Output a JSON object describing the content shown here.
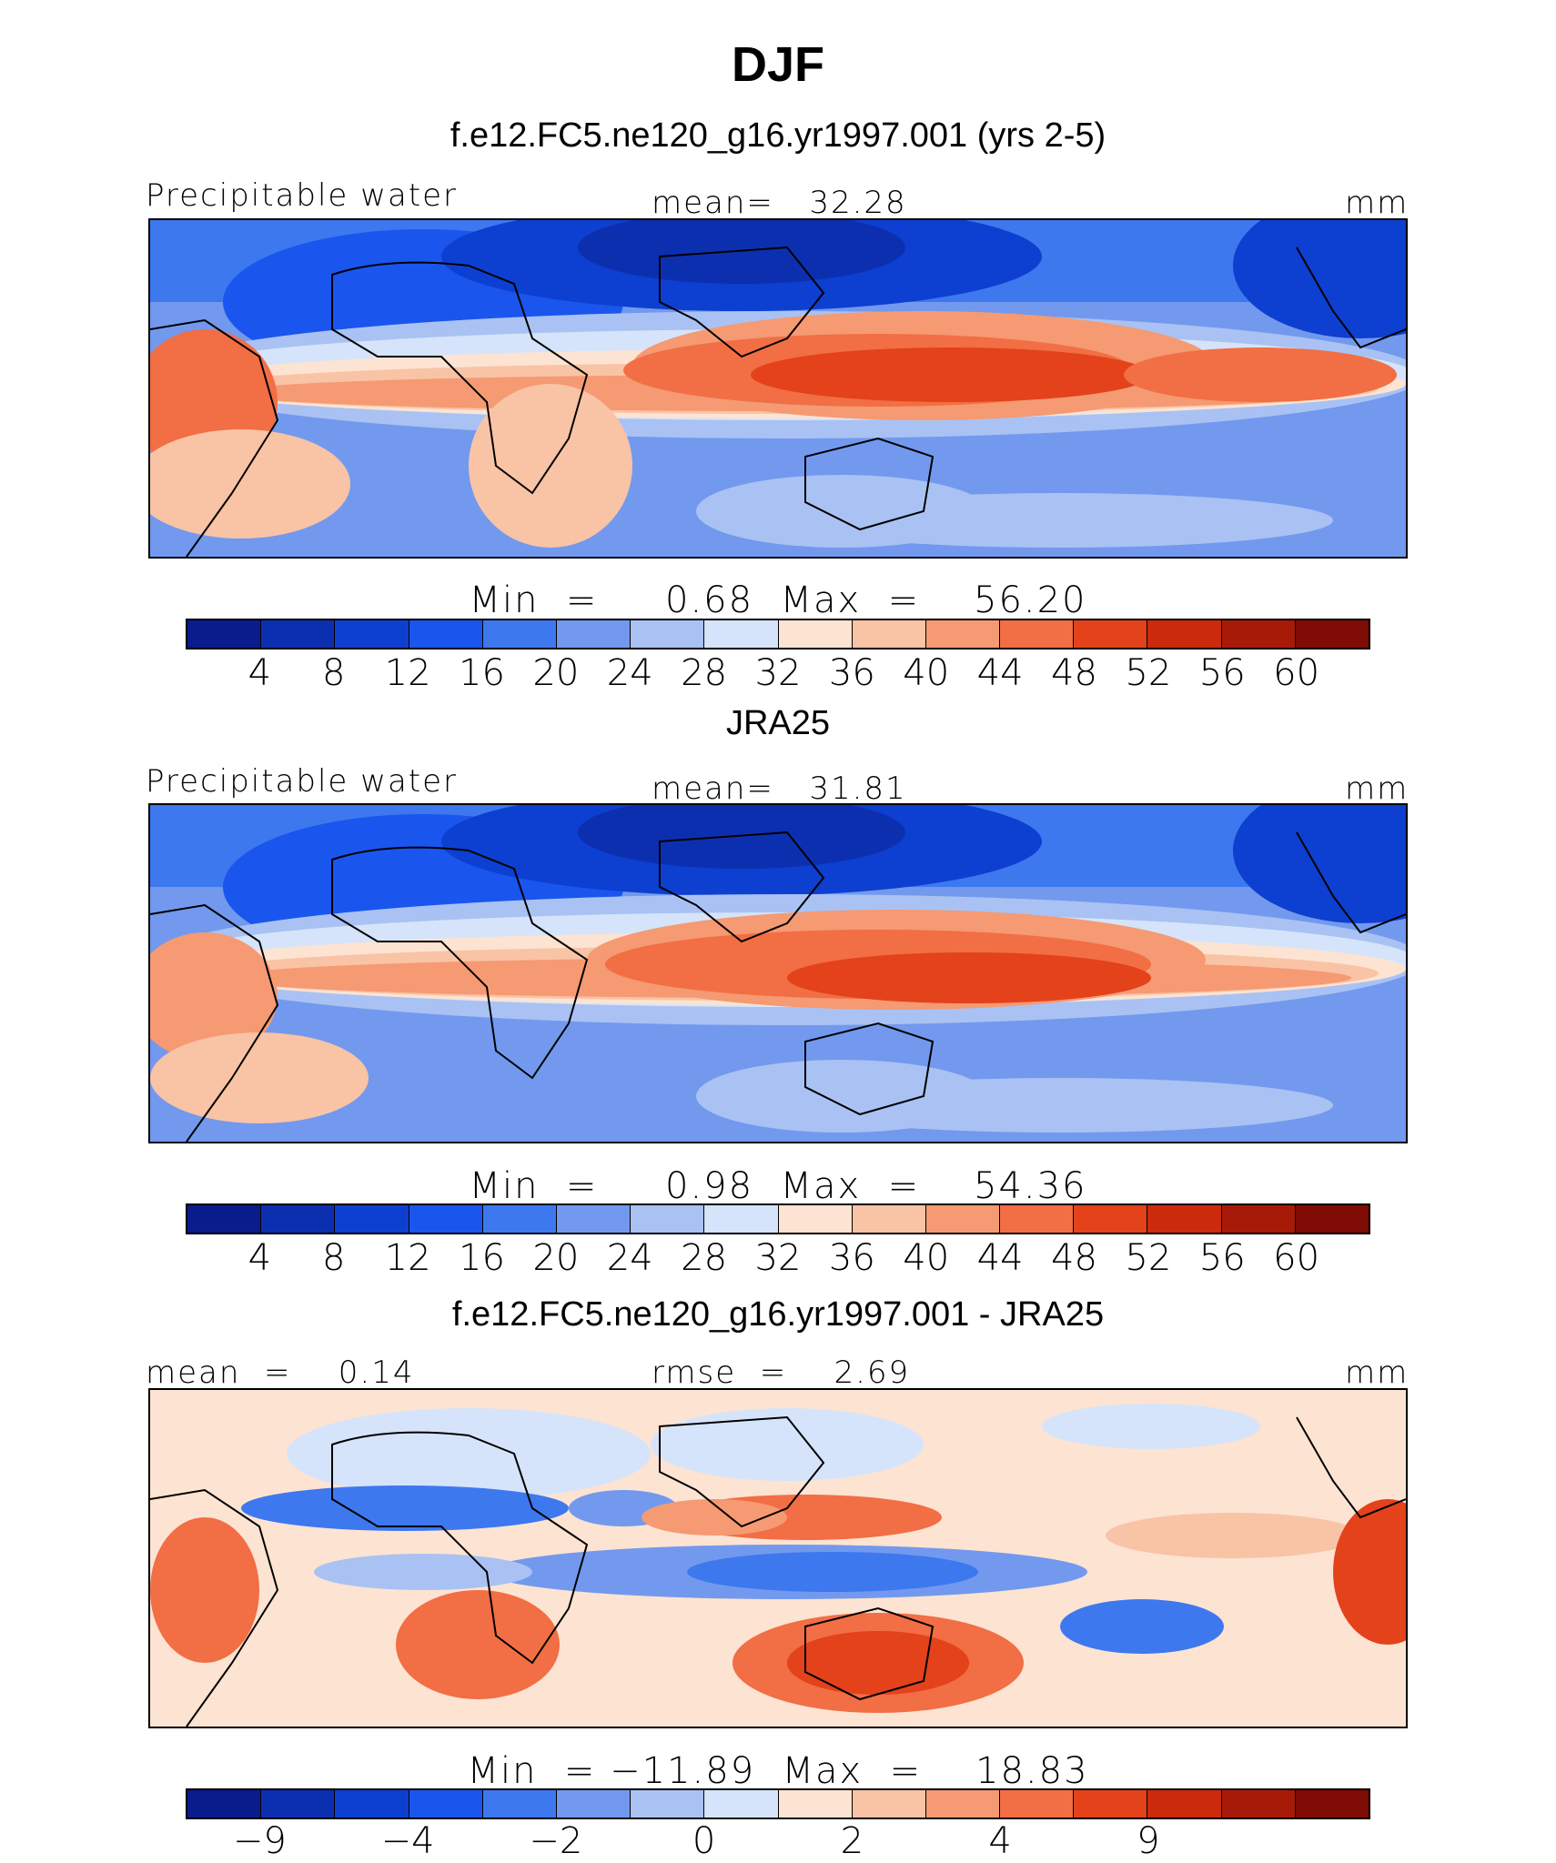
{
  "title": "DJF",
  "panels": [
    {
      "title": "f.e12.FC5.ne120_g16.yr1997.001 (yrs 2-5)",
      "left_label": "Precipitable water",
      "center_label": "mean=   32.28",
      "units": "mm",
      "minmax": "Min  =     0.68  Max  =    56.20",
      "tick_labels": [
        "4",
        "8",
        "12",
        "16",
        "20",
        "24",
        "28",
        "32",
        "36",
        "40",
        "44",
        "48",
        "52",
        "56",
        "60"
      ]
    },
    {
      "title": "JRA25",
      "left_label": "Precipitable water",
      "center_label": "mean=   31.81",
      "units": "mm",
      "minmax": "Min  =     0.98  Max  =    54.36",
      "tick_labels": [
        "4",
        "8",
        "12",
        "16",
        "20",
        "24",
        "28",
        "32",
        "36",
        "40",
        "44",
        "48",
        "52",
        "56",
        "60"
      ]
    },
    {
      "title": "f.e12.FC5.ne120_g16.yr1997.001 - JRA25",
      "left_label": "mean  =    0.14",
      "center_label": "rmse  =    2.69",
      "units": "mm",
      "minmax": "Min  = −11.89  Max  =    18.83",
      "tick_labels": [
        "−9",
        "",
        "−4",
        "",
        "−2",
        "",
        "0",
        "",
        "2",
        "",
        "4",
        "",
        "9"
      ]
    }
  ],
  "colors": {
    "seq": [
      "#0a1b8c",
      "#0c2fb0",
      "#0d3fd0",
      "#1a55ee",
      "#3d78ef",
      "#7299ee",
      "#a9c2f3",
      "#d5e4fa",
      "#fde3d2",
      "#f9c3a6",
      "#f59a72",
      "#f26e44",
      "#e3421b",
      "#cc2a0c",
      "#a81a08",
      "#7e0b04"
    ],
    "diff": [
      "#0a1b8c",
      "#0c2fb0",
      "#0d3fd0",
      "#1a55ee",
      "#3d78ef",
      "#7299ee",
      "#a9c2f3",
      "#d5e4fa",
      "#fde3d2",
      "#f9c3a6",
      "#f59a72",
      "#f26e44",
      "#e3421b",
      "#cc2a0c",
      "#a81a08",
      "#7e0b04"
    ]
  }
}
